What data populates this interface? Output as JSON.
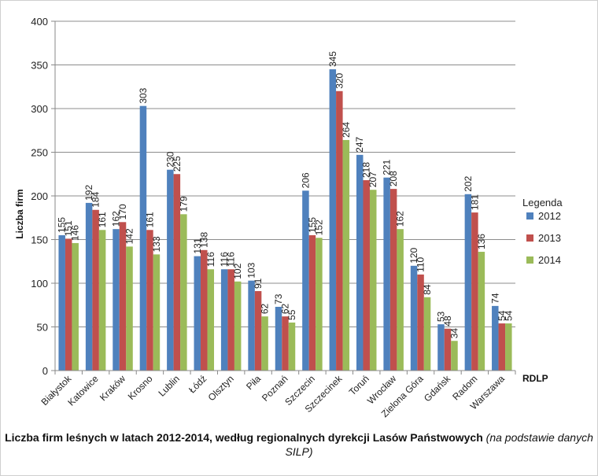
{
  "chart_data": {
    "type": "bar",
    "title": "Liczba firm leśnych w latach 2012-2014, według regionalnych dyrekcji Lasów Państwowych",
    "source_note": "(na podstawie danych SILP)",
    "xlabel": "RDLP",
    "ylabel": "Liczba firm",
    "ylim": [
      0,
      400
    ],
    "yticks": [
      0,
      50,
      100,
      150,
      200,
      250,
      300,
      350,
      400
    ],
    "grid": "horizontal",
    "legend_title": "Legenda",
    "legend_position": "right",
    "categories": [
      "Białystok",
      "Katowice",
      "Kraków",
      "Krosno",
      "Lublin",
      "Łódź",
      "Olsztyn",
      "Piła",
      "Poznań",
      "Szczecin",
      "Szczecinek",
      "Toruń",
      "Wrocław",
      "Zielona Góra",
      "Gdańsk",
      "Radom",
      "Warszawa"
    ],
    "series": [
      {
        "name": "2012",
        "color": "#4f81bd",
        "values": [
          155,
          192,
          162,
          303,
          230,
          131,
          116,
          103,
          73,
          206,
          345,
          247,
          221,
          120,
          53,
          202,
          74
        ]
      },
      {
        "name": "2013",
        "color": "#c0504d",
        "values": [
          151,
          184,
          170,
          161,
          225,
          138,
          116,
          91,
          62,
          155,
          320,
          218,
          208,
          110,
          48,
          181,
          54
        ]
      },
      {
        "name": "2014",
        "color": "#9bbb59",
        "values": [
          146,
          161,
          142,
          133,
          179,
          116,
          102,
          62,
          55,
          152,
          264,
          207,
          162,
          84,
          34,
          136,
          54
        ]
      }
    ]
  }
}
